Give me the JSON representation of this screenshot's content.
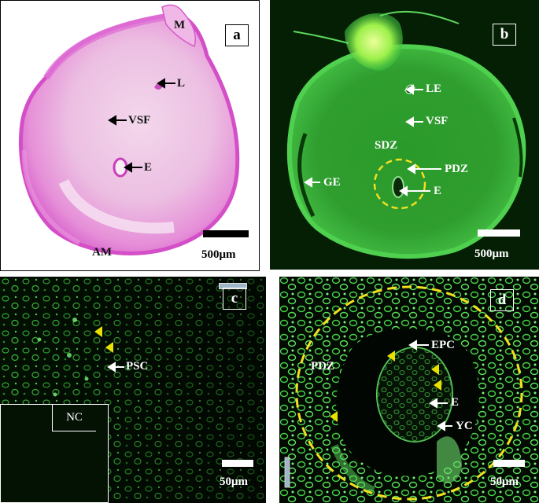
{
  "colors": {
    "he_stain": "#e67ad9",
    "gfp_green": "#3ecf3e",
    "dashed_circle": "#f0e020",
    "arrowhead": "#e8e000",
    "frame": "#000000"
  },
  "panels": {
    "a": {
      "letter": "a",
      "labels": {
        "M": "M",
        "L": "L",
        "VSF": "VSF",
        "E": "E",
        "AM": "AM"
      },
      "scale": "500μm"
    },
    "b": {
      "letter": "b",
      "labels": {
        "LE": "LE",
        "VSF": "VSF",
        "SDZ": "SDZ",
        "PDZ": "PDZ",
        "GE": "GE",
        "E": "E"
      },
      "scale": "500μm"
    },
    "c": {
      "letter": "c",
      "labels": {
        "PSC": "PSC"
      },
      "inset_label": "NC",
      "scale": "50μm"
    },
    "d": {
      "letter": "d",
      "labels": {
        "PDZ": "PDZ",
        "EPC": "EPC",
        "E": "E",
        "YC": "YC"
      },
      "scale": "50μm"
    }
  }
}
